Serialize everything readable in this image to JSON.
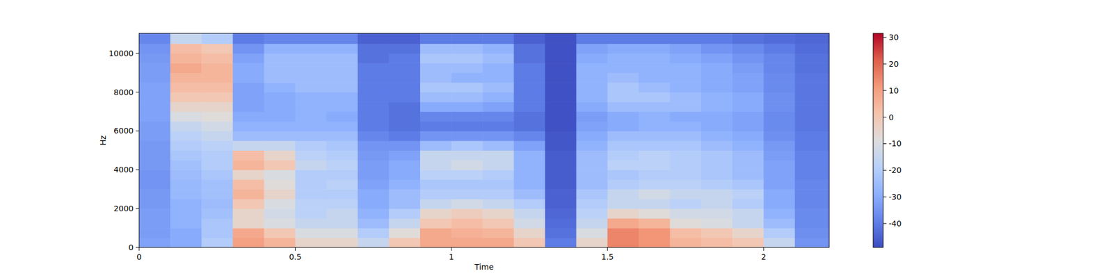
{
  "chart_data": {
    "type": "heatmap",
    "x_label": "Time",
    "y_label": "Hz",
    "xlim": [
      0,
      2.21
    ],
    "ylim": [
      0,
      11025
    ],
    "xticks": [
      0,
      0.5,
      1,
      1.5,
      2
    ],
    "yticks": [
      0,
      2000,
      4000,
      6000,
      8000,
      10000
    ],
    "x_bins": [
      0,
      0.1,
      0.2,
      0.3,
      0.4,
      0.5,
      0.6,
      0.7,
      0.8,
      0.9,
      1.0,
      1.1,
      1.2,
      1.3,
      1.4,
      1.5,
      1.6,
      1.7,
      1.8,
      1.9,
      2.0,
      2.1,
      2.21
    ],
    "y_bins": [
      0,
      500,
      1000,
      1500,
      2000,
      2500,
      3000,
      3500,
      4000,
      4500,
      5000,
      5500,
      6000,
      6500,
      7000,
      7500,
      8000,
      8500,
      9000,
      9500,
      10000,
      10500,
      11025
    ],
    "cells": [
      [
        -32,
        -30,
        -20,
        10,
        5,
        -5,
        -5,
        -15,
        0,
        8,
        8,
        8,
        0,
        -40,
        -5,
        15,
        12,
        5,
        3,
        0,
        -15,
        -35
      ],
      [
        -33,
        -30,
        -22,
        8,
        0,
        -10,
        -10,
        -20,
        -8,
        8,
        6,
        5,
        -5,
        -42,
        -10,
        15,
        12,
        3,
        0,
        -5,
        -20,
        -36
      ],
      [
        -33,
        -28,
        -22,
        -5,
        -10,
        -15,
        -15,
        -25,
        -15,
        0,
        3,
        0,
        -12,
        -43,
        -15,
        8,
        5,
        -8,
        -10,
        -15,
        -25,
        -37
      ],
      [
        -33,
        -28,
        -24,
        -5,
        -12,
        -18,
        -15,
        -28,
        -20,
        -5,
        -2,
        -5,
        -15,
        -44,
        -18,
        -5,
        -8,
        -12,
        -12,
        -15,
        -28,
        -37
      ],
      [
        -34,
        -28,
        -25,
        0,
        -10,
        -18,
        -18,
        -30,
        -25,
        -15,
        -12,
        -15,
        -20,
        -45,
        -20,
        -15,
        -15,
        -18,
        -15,
        -20,
        -30,
        -38
      ],
      [
        -34,
        -26,
        -24,
        5,
        -5,
        -20,
        -20,
        -30,
        -25,
        -20,
        -20,
        -20,
        -25,
        -45,
        -22,
        -15,
        -12,
        -15,
        -15,
        -18,
        -30,
        -38
      ],
      [
        -35,
        -26,
        -24,
        3,
        -8,
        -20,
        -18,
        -32,
        -28,
        -22,
        -22,
        -22,
        -28,
        -46,
        -25,
        -20,
        -18,
        -18,
        -20,
        -22,
        -32,
        -38
      ],
      [
        -35,
        -25,
        -22,
        -5,
        -10,
        -20,
        -20,
        -33,
        -30,
        -18,
        -18,
        -20,
        -28,
        -46,
        -25,
        -22,
        -20,
        -20,
        -22,
        -25,
        -32,
        -39
      ],
      [
        -34,
        -24,
        -20,
        5,
        0,
        -15,
        -18,
        -33,
        -30,
        -15,
        -12,
        -15,
        -28,
        -46,
        -25,
        -18,
        -18,
        -20,
        -22,
        -25,
        -32,
        -39
      ],
      [
        -34,
        -22,
        -20,
        3,
        -5,
        -18,
        -20,
        -34,
        -32,
        -15,
        -15,
        -15,
        -28,
        -46,
        -25,
        -20,
        -18,
        -20,
        -22,
        -25,
        -33,
        -39
      ],
      [
        -34,
        -20,
        -18,
        -15,
        -15,
        -20,
        -22,
        -35,
        -35,
        -25,
        -22,
        -25,
        -32,
        -47,
        -28,
        -22,
        -22,
        -22,
        -25,
        -28,
        -34,
        -40
      ],
      [
        -33,
        -18,
        -15,
        -25,
        -25,
        -25,
        -25,
        -38,
        -40,
        -35,
        -35,
        -35,
        -38,
        -47,
        -30,
        -25,
        -25,
        -25,
        -28,
        -30,
        -36,
        -40
      ],
      [
        -33,
        -15,
        -12,
        -28,
        -28,
        -28,
        -28,
        -40,
        -42,
        -40,
        -40,
        -40,
        -42,
        -48,
        -32,
        -30,
        -28,
        -28,
        -30,
        -32,
        -37,
        -41
      ],
      [
        -32,
        -10,
        -8,
        -30,
        -30,
        -28,
        -30,
        -40,
        -42,
        -38,
        -38,
        -38,
        -42,
        -48,
        -33,
        -30,
        -28,
        -30,
        -30,
        -32,
        -37,
        -41
      ],
      [
        -32,
        -5,
        -5,
        -32,
        -30,
        -28,
        -28,
        -40,
        -42,
        -30,
        -30,
        -32,
        -40,
        -48,
        -30,
        -25,
        -25,
        -25,
        -28,
        -30,
        -36,
        -41
      ],
      [
        -32,
        0,
        0,
        -32,
        -30,
        -28,
        -28,
        -40,
        -40,
        -25,
        -25,
        -28,
        -40,
        -48,
        -28,
        -22,
        -22,
        -25,
        -28,
        -30,
        -36,
        -41
      ],
      [
        -32,
        3,
        3,
        -32,
        -28,
        -25,
        -25,
        -40,
        -40,
        -22,
        -22,
        -25,
        -40,
        -48,
        -28,
        -22,
        -25,
        -28,
        -30,
        -32,
        -37,
        -41
      ],
      [
        -33,
        5,
        5,
        -30,
        -25,
        -25,
        -25,
        -40,
        -40,
        -25,
        -28,
        -28,
        -40,
        -48,
        -28,
        -25,
        -28,
        -28,
        -30,
        -32,
        -37,
        -41
      ],
      [
        -33,
        8,
        5,
        -30,
        -25,
        -25,
        -25,
        -40,
        -40,
        -25,
        -25,
        -28,
        -40,
        -48,
        -28,
        -28,
        -28,
        -28,
        -30,
        -33,
        -38,
        -42
      ],
      [
        -34,
        5,
        3,
        -32,
        -25,
        -25,
        -25,
        -42,
        -40,
        -22,
        -22,
        -25,
        -42,
        -48,
        -30,
        -28,
        -28,
        -30,
        -32,
        -35,
        -38,
        -42
      ],
      [
        -35,
        3,
        0,
        -35,
        -28,
        -28,
        -28,
        -42,
        -42,
        -25,
        -25,
        -28,
        -42,
        -48,
        -32,
        -30,
        -30,
        -32,
        -35,
        -37,
        -40,
        -43
      ],
      [
        -38,
        -15,
        -20,
        -40,
        -38,
        -38,
        -38,
        -45,
        -45,
        -40,
        -40,
        -40,
        -45,
        -48,
        -40,
        -40,
        -40,
        -40,
        -40,
        -42,
        -43,
        -44
      ]
    ],
    "color_range": [
      -49,
      31.5
    ],
    "color_ticks": [
      -40,
      -30,
      -20,
      -10,
      0,
      10,
      20,
      30
    ]
  }
}
